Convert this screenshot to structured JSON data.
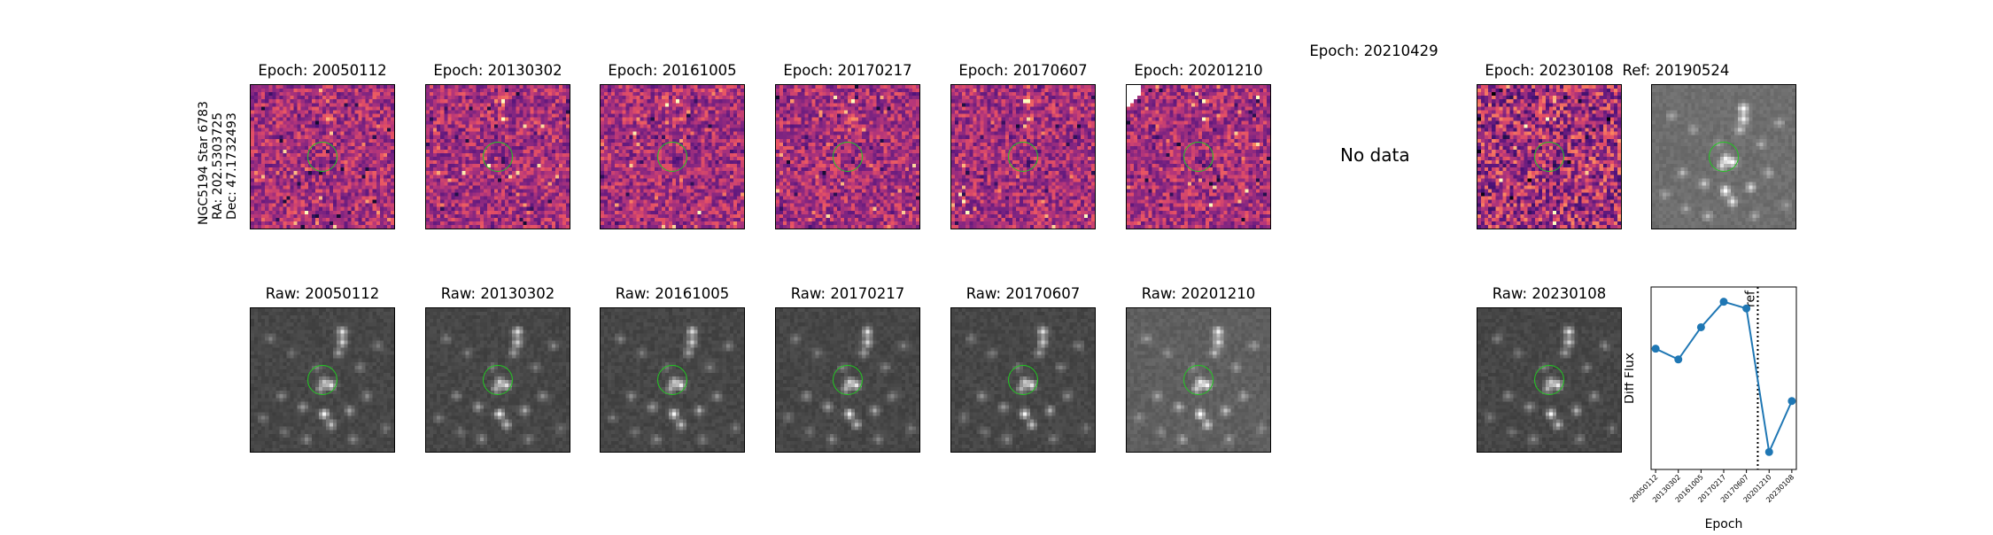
{
  "star_label": {
    "line1": "NGC5194 Star 6783",
    "line2": "RA: 202.5303725",
    "line3": "Dec: 47.1732493"
  },
  "diff_panels": [
    {
      "title": "Epoch: 20050112",
      "has_data": true
    },
    {
      "title": "Epoch: 20130302",
      "has_data": true
    },
    {
      "title": "Epoch: 20161005",
      "has_data": true
    },
    {
      "title": "Epoch: 20170217",
      "has_data": true
    },
    {
      "title": "Epoch: 20170607",
      "has_data": true
    },
    {
      "title": "Epoch: 20201210",
      "has_data": true
    },
    {
      "title": "Epoch: 20210429",
      "has_data": false,
      "placeholder": "No data"
    },
    {
      "title": "Epoch: 20230108",
      "has_data": true
    }
  ],
  "ref_panel": {
    "title": "Ref: 20190524"
  },
  "raw_panels": [
    {
      "title": "Raw: 20050112"
    },
    {
      "title": "Raw: 20130302"
    },
    {
      "title": "Raw: 20161005"
    },
    {
      "title": "Raw: 20170217"
    },
    {
      "title": "Raw: 20170607"
    },
    {
      "title": "Raw: 20201210"
    },
    {
      "title": "Raw: 20230108"
    }
  ],
  "colors": {
    "aperture": "#21c821",
    "series": "#1f77b4",
    "diff_cmap": "magma"
  },
  "chart_data": {
    "type": "line",
    "xlabel": "Epoch",
    "ylabel": "Diff Flux",
    "categories": [
      "20050112",
      "20130302",
      "20161005",
      "20170217",
      "20170607",
      "20201210",
      "20230108"
    ],
    "values": [
      0.52,
      0.44,
      0.68,
      0.87,
      0.82,
      -0.25,
      0.13
    ],
    "ylim": [
      -0.38,
      0.98
    ],
    "yticks_visible": false,
    "reference_line": {
      "label": "ref",
      "after_category_index": 4,
      "style": "dotted"
    },
    "grid": false
  }
}
